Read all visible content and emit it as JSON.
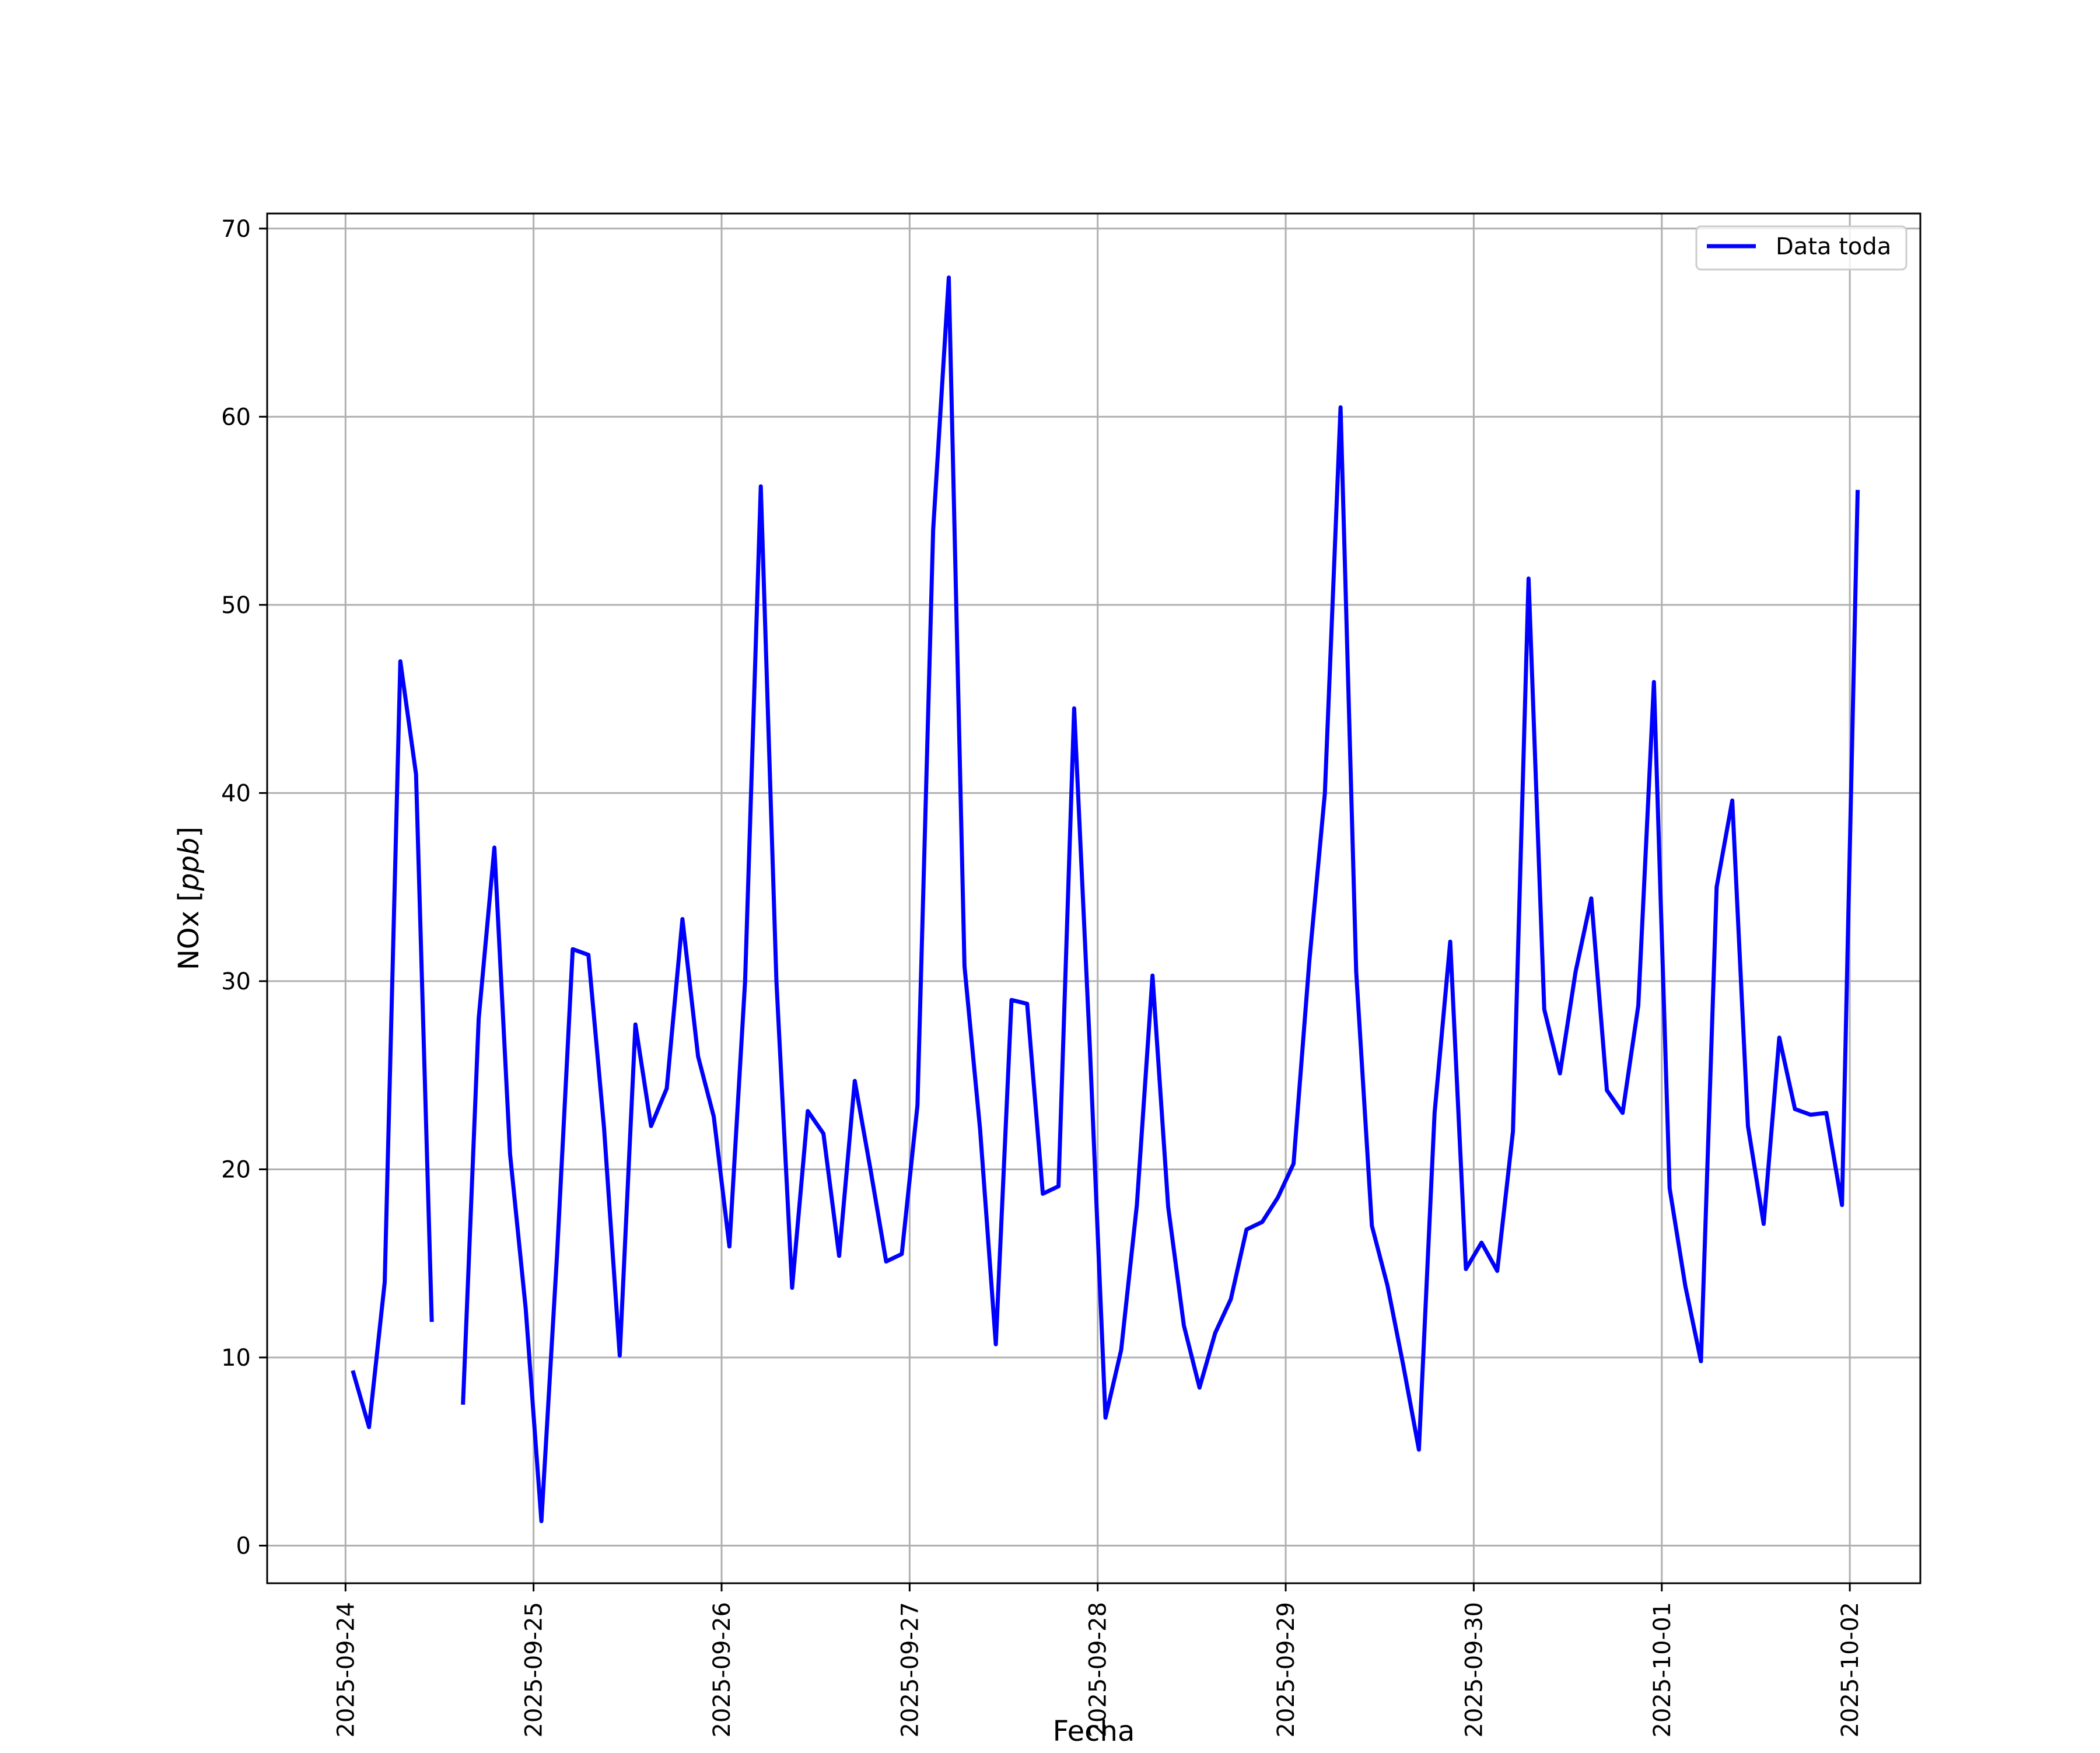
{
  "chart_data": {
    "type": "line",
    "title": "",
    "xlabel": "Fecha",
    "ylabel": "NOx [ppb]",
    "ylabel_main": "NOx [",
    "ylabel_unit": "ppb",
    "ylabel_end": "]",
    "ylim": [
      -2,
      70.8
    ],
    "xlim": [
      "2025-09-23T14:00",
      "2025-10-02T09:00"
    ],
    "grid": true,
    "legend_position": "top-right",
    "x_ticks": [
      "2025-09-24",
      "2025-09-25",
      "2025-09-26",
      "2025-09-27",
      "2025-09-28",
      "2025-09-29",
      "2025-09-30",
      "2025-10-01",
      "2025-10-02"
    ],
    "y_ticks": [
      0,
      10,
      20,
      30,
      40,
      50,
      60,
      70
    ],
    "series": [
      {
        "name": "Data toda",
        "color": "#0000ff",
        "x": [
          "2025-09-24T01:00",
          "2025-09-24T03:00",
          "2025-09-24T05:00",
          "2025-09-24T07:00",
          "2025-09-24T09:00",
          "2025-09-24T11:00",
          "2025-09-24T13:00",
          "2025-09-24T15:00",
          "2025-09-24T17:00",
          "2025-09-24T19:00",
          "2025-09-24T21:00",
          "2025-09-24T23:00",
          "2025-09-25T01:00",
          "2025-09-25T03:00",
          "2025-09-25T05:00",
          "2025-09-25T07:00",
          "2025-09-25T09:00",
          "2025-09-25T11:00",
          "2025-09-25T13:00",
          "2025-09-25T15:00",
          "2025-09-25T17:00",
          "2025-09-25T19:00",
          "2025-09-25T21:00",
          "2025-09-25T23:00",
          "2025-09-26T01:00",
          "2025-09-26T03:00",
          "2025-09-26T05:00",
          "2025-09-26T07:00",
          "2025-09-26T09:00",
          "2025-09-26T11:00",
          "2025-09-26T13:00",
          "2025-09-26T15:00",
          "2025-09-26T17:00",
          "2025-09-26T19:00",
          "2025-09-26T21:00",
          "2025-09-26T23:00",
          "2025-09-27T01:00",
          "2025-09-27T03:00",
          "2025-09-27T05:00",
          "2025-09-27T07:00",
          "2025-09-27T09:00",
          "2025-09-27T11:00",
          "2025-09-27T13:00",
          "2025-09-27T15:00",
          "2025-09-27T17:00",
          "2025-09-27T19:00",
          "2025-09-27T21:00",
          "2025-09-27T23:00",
          "2025-09-28T01:00",
          "2025-09-28T03:00",
          "2025-09-28T05:00",
          "2025-09-28T07:00",
          "2025-09-28T09:00",
          "2025-09-28T11:00",
          "2025-09-28T13:00",
          "2025-09-28T15:00",
          "2025-09-28T17:00",
          "2025-09-28T19:00",
          "2025-09-28T21:00",
          "2025-09-28T23:00",
          "2025-09-29T01:00",
          "2025-09-29T03:00",
          "2025-09-29T05:00",
          "2025-09-29T07:00",
          "2025-09-29T09:00",
          "2025-09-29T11:00",
          "2025-09-29T13:00",
          "2025-09-29T15:00",
          "2025-09-29T17:00",
          "2025-09-29T19:00",
          "2025-09-29T21:00",
          "2025-09-29T23:00",
          "2025-09-30T01:00",
          "2025-09-30T03:00",
          "2025-09-30T05:00",
          "2025-09-30T07:00",
          "2025-09-30T09:00",
          "2025-09-30T11:00",
          "2025-09-30T13:00",
          "2025-09-30T15:00",
          "2025-09-30T17:00",
          "2025-09-30T19:00",
          "2025-09-30T21:00",
          "2025-09-30T23:00",
          "2025-10-01T01:00",
          "2025-10-01T03:00",
          "2025-10-01T05:00",
          "2025-10-01T07:00",
          "2025-10-01T09:00",
          "2025-10-01T11:00",
          "2025-10-01T13:00",
          "2025-10-01T15:00",
          "2025-10-01T17:00",
          "2025-10-01T19:00",
          "2025-10-01T21:00",
          "2025-10-01T23:00",
          "2025-10-02T01:00"
        ],
        "y": [
          9.2,
          6.3,
          14.0,
          47.0,
          41.0,
          12.0,
          null,
          7.6,
          28.0,
          37.1,
          20.8,
          12.6,
          1.3,
          15.5,
          31.7,
          31.4,
          22.2,
          10.1,
          27.7,
          22.3,
          24.3,
          33.3,
          26.0,
          22.8,
          15.9,
          30.0,
          56.3,
          30.0,
          13.7,
          23.1,
          21.9,
          15.4,
          24.7,
          20.0,
          15.1,
          15.5,
          23.4,
          54.0,
          67.4,
          30.8,
          22.1,
          10.7,
          29.0,
          28.8,
          18.7,
          19.1,
          44.5,
          26.5,
          6.8,
          10.4,
          18.1,
          30.3,
          18.0,
          11.7,
          8.4,
          11.3,
          13.1,
          16.8,
          17.2,
          18.5,
          20.3,
          31.0,
          40.0,
          60.5,
          30.5,
          17.0,
          13.8,
          9.6,
          5.1,
          23.0,
          32.1,
          14.7,
          16.1,
          14.6,
          22.0,
          51.4,
          28.5,
          25.1,
          30.5,
          34.4,
          24.2,
          23.0,
          28.7,
          45.9,
          19.0,
          13.8,
          9.8,
          35.0,
          39.6,
          22.3,
          17.1,
          27.0,
          23.2,
          22.9,
          23.0,
          18.1,
          56.0
        ]
      }
    ]
  }
}
